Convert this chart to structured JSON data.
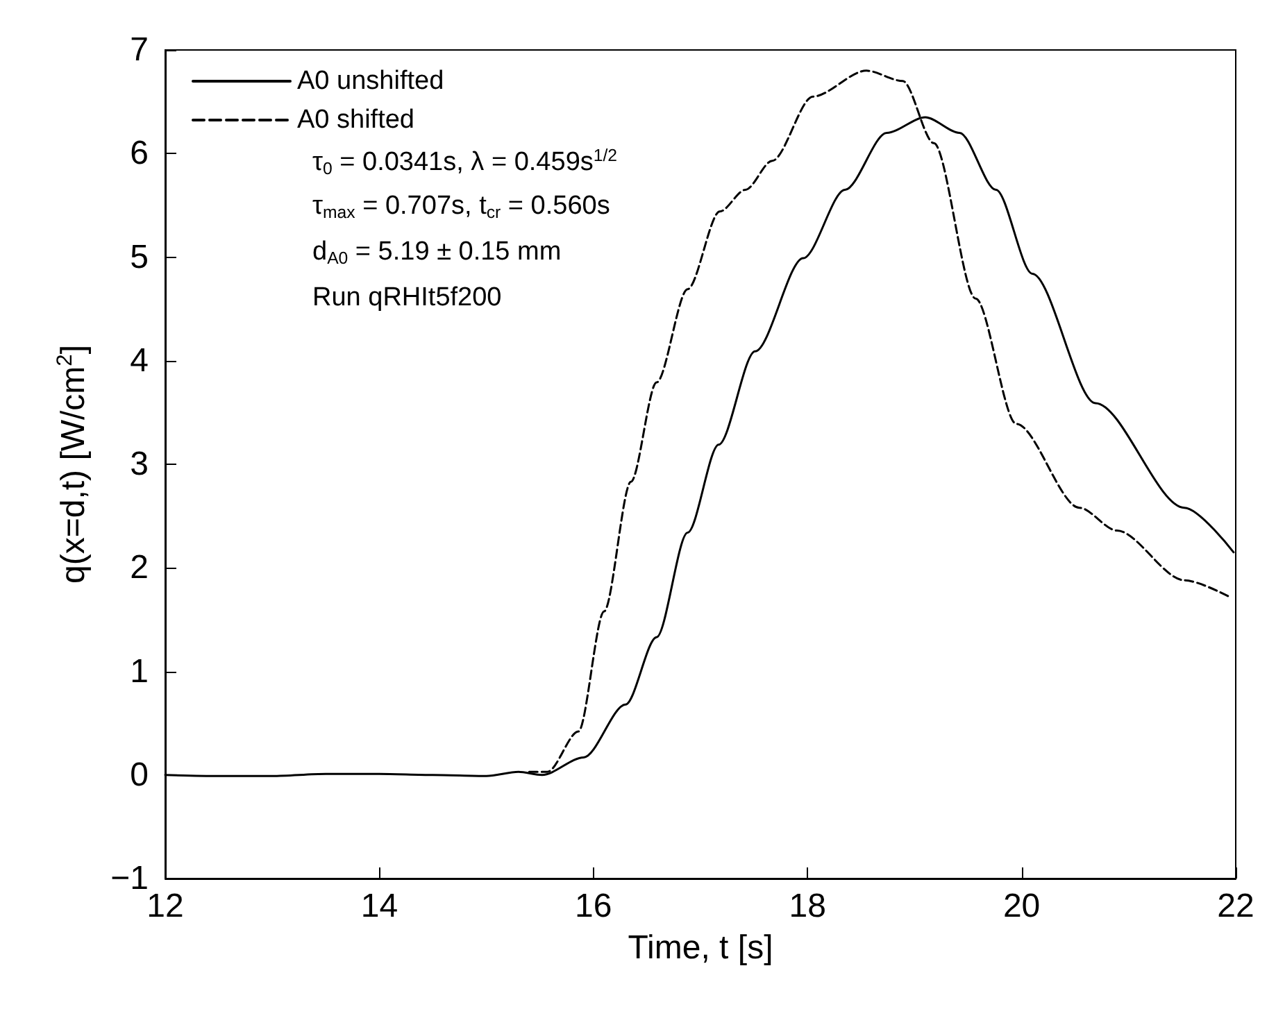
{
  "chart_data": {
    "type": "line",
    "xlabel": "Time, t [s]",
    "ylabel": "q(x=d,t) [W/cm$^{2}$]",
    "xlim": [
      12,
      22
    ],
    "xticks": [
      12,
      14,
      16,
      18,
      20,
      22
    ],
    "ylim": [
      -1,
      7
    ],
    "yticks": [
      -1,
      0,
      1,
      2,
      3,
      4,
      5,
      6,
      7
    ],
    "grid": false,
    "legend": "top left",
    "marker": "none",
    "series": [
      {
        "name": "A0 unshifted",
        "color": "#000000",
        "line_style": "solid",
        "x": [
          12,
          12.5,
          13,
          13.5,
          14,
          14.5,
          15,
          15.3,
          15.52,
          15.91,
          16.3,
          16.59,
          16.88,
          17.17,
          17.51,
          17.96,
          18.35,
          18.74,
          19.1,
          19.42,
          19.76,
          20.1,
          20.69,
          21.52,
          21.98
        ],
        "values": [
          0,
          -0.01,
          -0.01,
          0.01,
          0.01,
          0,
          -0.01,
          0.03,
          0,
          0.17,
          0.68,
          1.33,
          2.34,
          3.19,
          4.09,
          4.99,
          5.65,
          6.2,
          6.35,
          6.2,
          5.65,
          4.84,
          3.59,
          2.58,
          2.15
        ]
      },
      {
        "name": "A0 shifted",
        "color": "#000000",
        "line_style": "dashed",
        "x": [
          15.4,
          15.57,
          15.86,
          16.1,
          16.35,
          16.59,
          16.88,
          17.18,
          17.42,
          17.67,
          18.05,
          18.55,
          18.89,
          19.18,
          19.57,
          19.95,
          20.54,
          20.89,
          21.52,
          21.96
        ],
        "values": [
          0.03,
          0.03,
          0.42,
          1.58,
          2.83,
          3.79,
          4.69,
          5.44,
          5.65,
          5.93,
          6.55,
          6.8,
          6.7,
          6.1,
          4.6,
          3.39,
          2.58,
          2.36,
          1.88,
          1.71
        ]
      }
    ],
    "annotations": [
      "τ$_{0}$ = 0.0341s, λ = 0.459s$^{1/2}$",
      "τ$_{max}$ = 0.707s, t$_{cr}$ = 0.560s",
      "d$_{A0}$ = 5.19 ± 0.15 mm",
      "Run qRHIt5f200"
    ]
  }
}
